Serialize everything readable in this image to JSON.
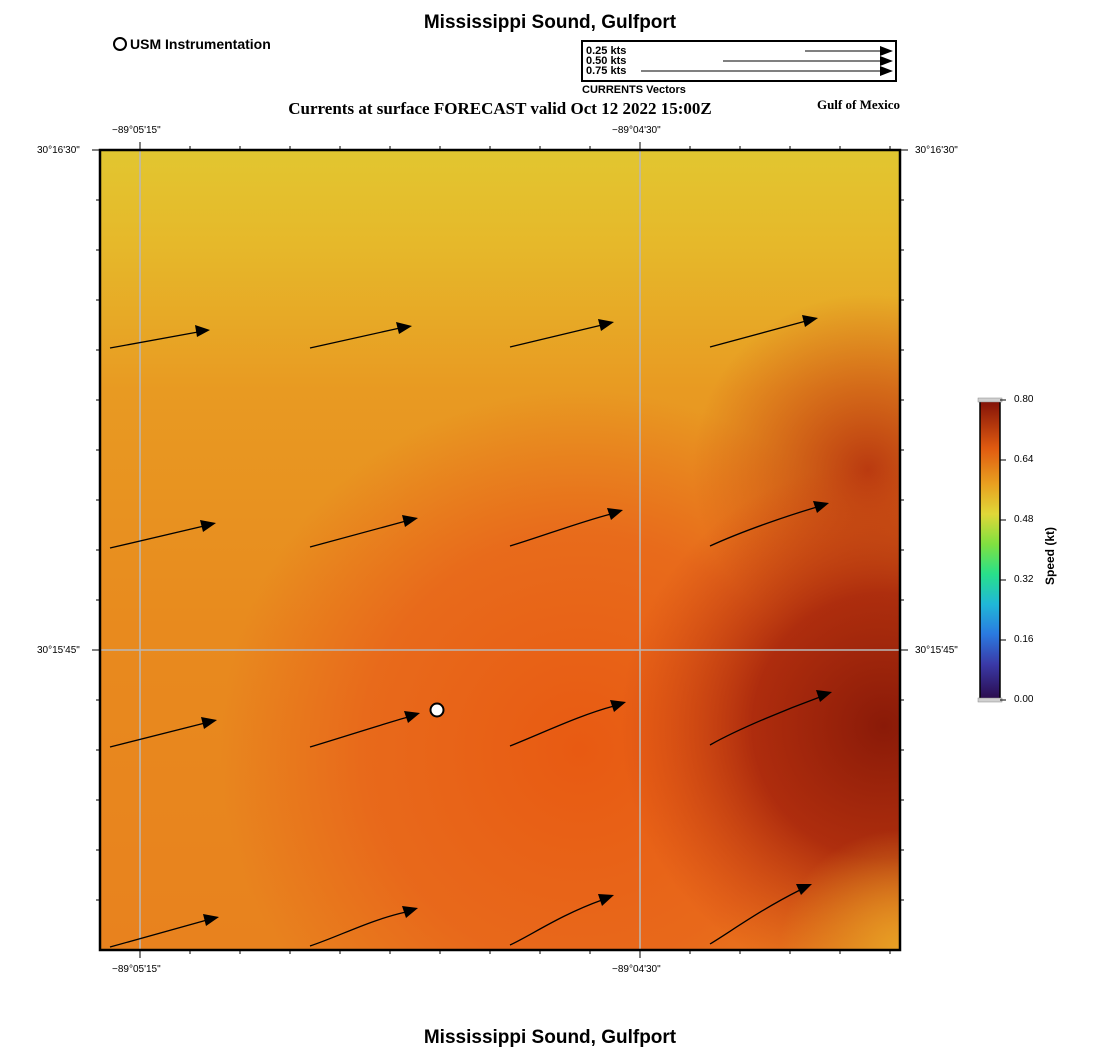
{
  "title": "Mississippi Sound, Gulfport",
  "subtitle": "Currents at surface FORECAST valid Oct 12 2022 15:00Z",
  "region_label": "Gulf of Mexico",
  "station_legend": "USM Instrumentation",
  "vector_legend": {
    "caption": "CURRENTS Vectors",
    "entries": [
      "0.25 kts",
      "0.50 kts",
      "0.75 kts"
    ]
  },
  "axes": {
    "lon_ticks": [
      "−89°05'15\"",
      "−89°04'30\""
    ],
    "lat_ticks": [
      "30°16'30\"",
      "30°15'45\""
    ]
  },
  "colorbar": {
    "title": "Speed (kt)",
    "min": 0.0,
    "max": 0.8,
    "ticks": [
      "0.80",
      "0.64",
      "0.48",
      "0.32",
      "0.16",
      "0.00"
    ]
  },
  "colors": {
    "dark_red": "#8a1a08",
    "red_orange": "#e85a12",
    "orange": "#e8901e",
    "yellow": "#e2c630"
  }
}
